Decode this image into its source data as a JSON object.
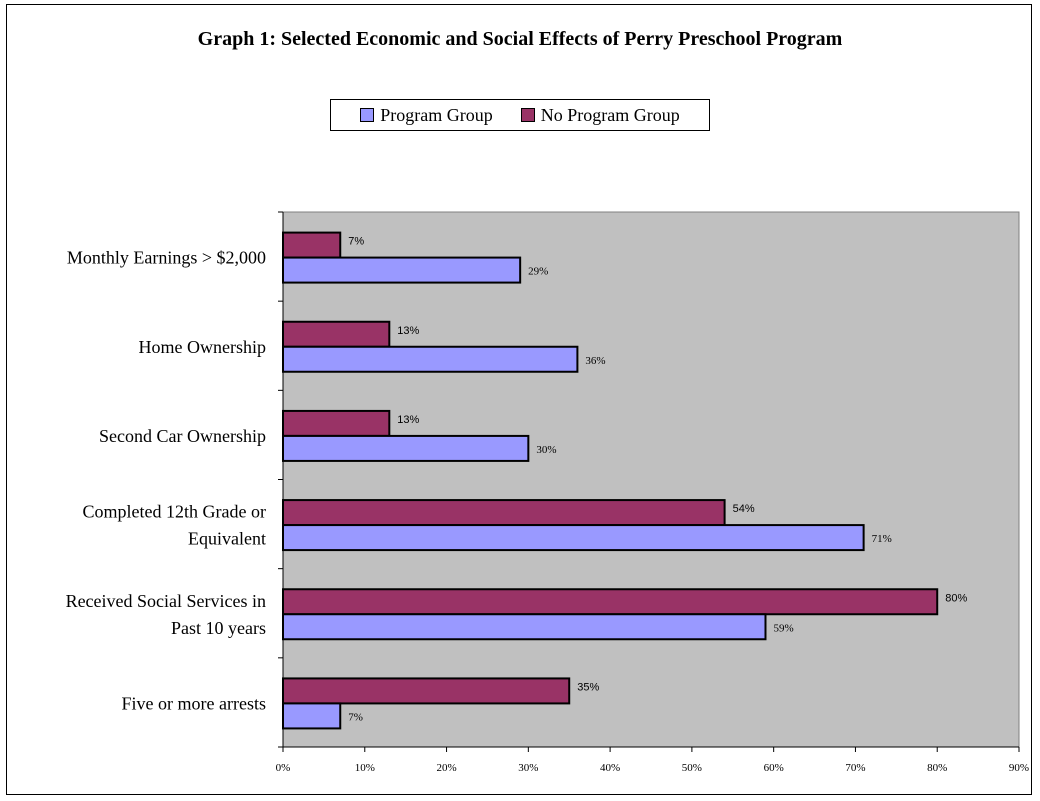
{
  "chart_data": {
    "type": "bar",
    "orientation": "horizontal",
    "title": "Graph 1: Selected Economic and Social Effects of Perry Preschool Program",
    "categories": [
      [
        "Monthly Earnings > $2,000"
      ],
      [
        "Home Ownership"
      ],
      [
        "Second Car Ownership"
      ],
      [
        "Completed 12th Grade or",
        "Equivalent"
      ],
      [
        "Received Social Services in",
        "Past 10 years"
      ],
      [
        "Five or more arrests"
      ]
    ],
    "series": [
      {
        "name": "Program Group",
        "color": "#9999ff",
        "values": [
          29,
          36,
          30,
          71,
          59,
          7
        ]
      },
      {
        "name": "No Program Group",
        "color": "#993366",
        "values": [
          7,
          13,
          13,
          54,
          80,
          35
        ]
      }
    ],
    "xlim": [
      0,
      90
    ],
    "xticks": [
      0,
      10,
      20,
      30,
      40,
      50,
      60,
      70,
      80,
      90
    ],
    "tick_suffix": "%",
    "grid": false,
    "plot_background": "#c0c0c0",
    "legend_position": "top"
  }
}
